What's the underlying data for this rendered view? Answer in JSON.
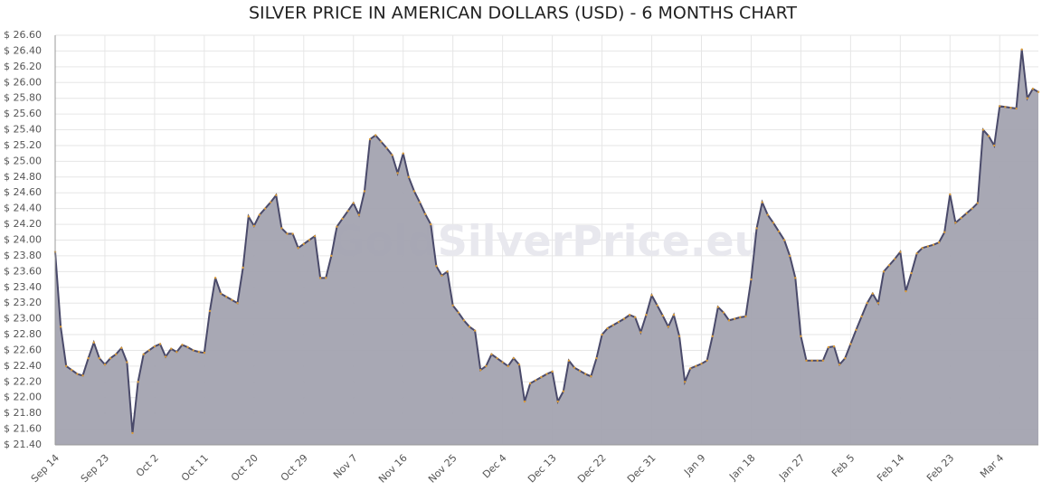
{
  "chart_data": {
    "type": "area",
    "title": "SILVER PRICE IN AMERICAN DOLLARS (USD) - 6 MONTHS CHART",
    "watermark": "GoldSilverPrice.eu",
    "color": "#4a4a6a",
    "fill": "#a3a3b0",
    "grid": true,
    "ylim": [
      21.4,
      26.6
    ],
    "yticks": [
      {
        "value": 21.4,
        "label": "$ 21.40"
      },
      {
        "value": 21.6,
        "label": "$ 21.60"
      },
      {
        "value": 21.8,
        "label": "$ 21.80"
      },
      {
        "value": 22.0,
        "label": "$ 22.00"
      },
      {
        "value": 22.2,
        "label": "$ 22.20"
      },
      {
        "value": 22.4,
        "label": "$ 22.40"
      },
      {
        "value": 22.6,
        "label": "$ 22.60"
      },
      {
        "value": 22.8,
        "label": "$ 22.80"
      },
      {
        "value": 23.0,
        "label": "$ 23.00"
      },
      {
        "value": 23.2,
        "label": "$ 23.20"
      },
      {
        "value": 23.4,
        "label": "$ 23.40"
      },
      {
        "value": 23.6,
        "label": "$ 23.60"
      },
      {
        "value": 23.8,
        "label": "$ 23.80"
      },
      {
        "value": 24.0,
        "label": "$ 24.00"
      },
      {
        "value": 24.2,
        "label": "$ 24.20"
      },
      {
        "value": 24.4,
        "label": "$ 24.40"
      },
      {
        "value": 24.6,
        "label": "$ 24.60"
      },
      {
        "value": 24.8,
        "label": "$ 24.80"
      },
      {
        "value": 25.0,
        "label": "$ 25.00"
      },
      {
        "value": 25.2,
        "label": "$ 25.20"
      },
      {
        "value": 25.4,
        "label": "$ 25.40"
      },
      {
        "value": 25.6,
        "label": "$ 25.60"
      },
      {
        "value": 25.8,
        "label": "$ 25.80"
      },
      {
        "value": 26.0,
        "label": "$ 26.00"
      },
      {
        "value": 26.2,
        "label": "$ 26.20"
      },
      {
        "value": 26.4,
        "label": "$ 26.40"
      },
      {
        "value": 26.6,
        "label": "$ 26.60"
      }
    ],
    "categories": [
      "Sep 14",
      null,
      null,
      null,
      null,
      null,
      null,
      null,
      null,
      "Sep 23",
      null,
      null,
      null,
      null,
      null,
      null,
      null,
      null,
      "Oct 2",
      null,
      null,
      null,
      null,
      null,
      null,
      null,
      null,
      "Oct 11",
      null,
      null,
      null,
      null,
      null,
      null,
      null,
      null,
      "Oct 20",
      null,
      null,
      null,
      null,
      null,
      null,
      null,
      null,
      "Oct 29",
      null,
      null,
      null,
      null,
      null,
      null,
      null,
      null,
      "Nov 7",
      null,
      null,
      null,
      null,
      null,
      null,
      null,
      null,
      "Nov 16",
      null,
      null,
      null,
      null,
      null,
      null,
      null,
      null,
      "Nov 25",
      null,
      null,
      null,
      null,
      null,
      null,
      null,
      null,
      "Dec 4",
      null,
      null,
      null,
      null,
      null,
      null,
      null,
      null,
      "Dec 13",
      null,
      null,
      null,
      null,
      null,
      null,
      null,
      null,
      "Dec 22",
      null,
      null,
      null,
      null,
      null,
      null,
      null,
      null,
      "Dec 31",
      null,
      null,
      null,
      null,
      null,
      null,
      null,
      null,
      "Jan 9",
      null,
      null,
      null,
      null,
      null,
      null,
      null,
      null,
      "Jan 18",
      null,
      null,
      null,
      null,
      null,
      null,
      null,
      null,
      "Jan 27",
      null,
      null,
      null,
      null,
      null,
      null,
      null,
      null,
      "Feb 5",
      null,
      null,
      null,
      null,
      null,
      null,
      null,
      null,
      "Feb 14",
      null,
      null,
      null,
      null,
      null,
      null,
      null,
      null,
      "Feb 23",
      null,
      null,
      null,
      null,
      null,
      null,
      null,
      null,
      "Mar 4",
      null,
      null,
      null,
      null,
      null,
      null,
      null
    ],
    "values": [
      23.85,
      22.9,
      22.4,
      22.35,
      22.3,
      22.28,
      22.5,
      22.7,
      22.5,
      22.42,
      22.5,
      22.55,
      22.63,
      22.45,
      21.55,
      22.2,
      22.55,
      22.6,
      22.65,
      22.68,
      22.52,
      22.62,
      22.58,
      22.67,
      22.64,
      22.6,
      22.58,
      22.57,
      23.1,
      23.52,
      23.32,
      23.28,
      23.24,
      23.2,
      23.65,
      24.3,
      24.18,
      24.32,
      24.4,
      24.48,
      24.57,
      24.15,
      24.08,
      24.08,
      23.9,
      23.95,
      24.0,
      24.05,
      23.52,
      23.52,
      23.8,
      24.17,
      24.27,
      24.37,
      24.47,
      24.32,
      24.62,
      25.28,
      25.33,
      25.25,
      25.17,
      25.08,
      24.85,
      25.1,
      24.8,
      24.62,
      24.48,
      24.33,
      24.2,
      23.67,
      23.55,
      23.6,
      23.17,
      23.08,
      22.98,
      22.9,
      22.85,
      22.35,
      22.4,
      22.55,
      22.5,
      22.45,
      22.4,
      22.5,
      22.42,
      21.95,
      22.18,
      22.22,
      22.26,
      22.3,
      22.33,
      21.95,
      22.08,
      22.47,
      22.38,
      22.34,
      22.3,
      22.27,
      22.5,
      22.8,
      22.88,
      22.92,
      22.96,
      23.0,
      23.05,
      23.02,
      22.83,
      23.05,
      23.3,
      23.17,
      23.04,
      22.9,
      23.05,
      22.78,
      22.2,
      22.37,
      22.4,
      22.43,
      22.47,
      22.78,
      23.15,
      23.08,
      22.98,
      23.0,
      23.02,
      23.03,
      23.5,
      24.15,
      24.48,
      24.32,
      24.22,
      24.11,
      24.0,
      23.8,
      23.52,
      22.78,
      22.47,
      22.47,
      22.47,
      22.47,
      22.64,
      22.65,
      22.42,
      22.5,
      22.68,
      22.86,
      23.03,
      23.2,
      23.32,
      23.2,
      23.6,
      23.68,
      23.76,
      23.85,
      23.35,
      23.58,
      23.83,
      23.9,
      23.92,
      23.94,
      23.97,
      24.1,
      24.58,
      24.22,
      24.28,
      24.34,
      24.4,
      24.47,
      25.4,
      25.32,
      25.2,
      25.7,
      25.69,
      25.68,
      25.67,
      26.42,
      25.8,
      25.92,
      25.88
    ]
  }
}
